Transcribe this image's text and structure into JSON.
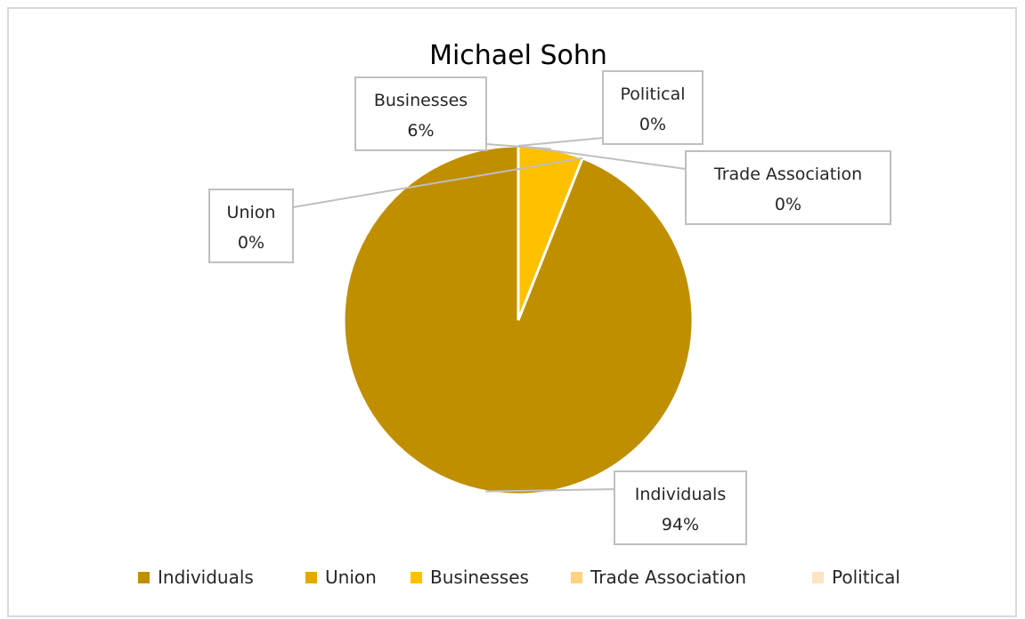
{
  "chart_data": {
    "type": "pie",
    "title": "Michael Sohn",
    "legend_position": "bottom",
    "slices": [
      {
        "name": "Individuals",
        "percent_label": "94%",
        "value": 94,
        "color": "#BF8F00"
      },
      {
        "name": "Union",
        "percent_label": "0%",
        "value": 0,
        "color": "#E4A800"
      },
      {
        "name": "Businesses",
        "percent_label": "6%",
        "value": 6,
        "color": "#FFC000"
      },
      {
        "name": "Trade Association",
        "percent_label": "0%",
        "value": 0,
        "color": "#FFD280"
      },
      {
        "name": "Political",
        "percent_label": "0%",
        "value": 0,
        "color": "#FFE4C2"
      }
    ]
  }
}
